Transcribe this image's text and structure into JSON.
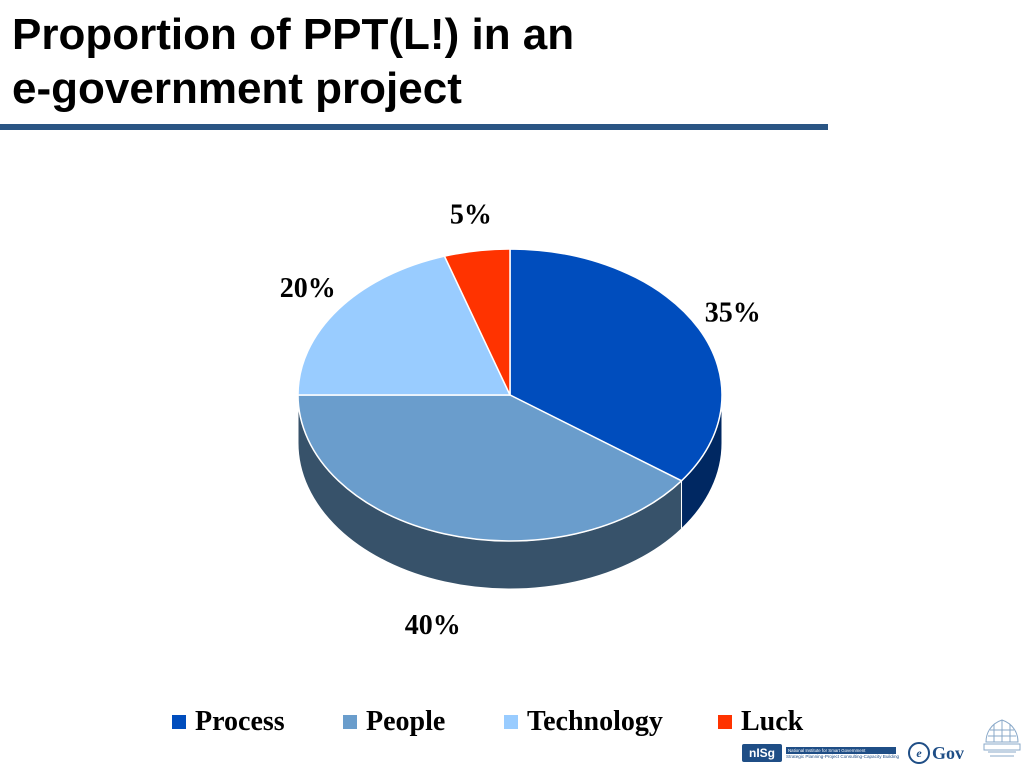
{
  "slide": {
    "title_line1": "Proportion of PPT(L!) in an",
    "title_line2": "e-government project",
    "rule_color": "#2a5584"
  },
  "chart_data": {
    "type": "pie",
    "title": "",
    "categories": [
      "Process",
      "People",
      "Technology",
      "Luck"
    ],
    "values": [
      35,
      40,
      20,
      5
    ],
    "data_labels": [
      "35%",
      "40%",
      "20%",
      "5%"
    ],
    "colors": [
      "#004dbd",
      "#6a9dcc",
      "#99ccff",
      "#ff3300"
    ],
    "legend_position": "bottom",
    "three_d": true
  },
  "legend": {
    "items": [
      {
        "label": "Process",
        "color": "#004dbd"
      },
      {
        "label": "People",
        "color": "#6a9dcc"
      },
      {
        "label": "Technology",
        "color": "#99ccff"
      },
      {
        "label": "Luck",
        "color": "#ff3300"
      }
    ]
  },
  "logos": {
    "nisg_mark": "nISg",
    "nisg_name": "National Institute for Smart Government",
    "nisg_tagline": "Strategic Planning-Project Consulting-Capacity Building",
    "egov_mark": "Gov",
    "egov_e": "e",
    "emblem_icon": "emblem-icon"
  }
}
